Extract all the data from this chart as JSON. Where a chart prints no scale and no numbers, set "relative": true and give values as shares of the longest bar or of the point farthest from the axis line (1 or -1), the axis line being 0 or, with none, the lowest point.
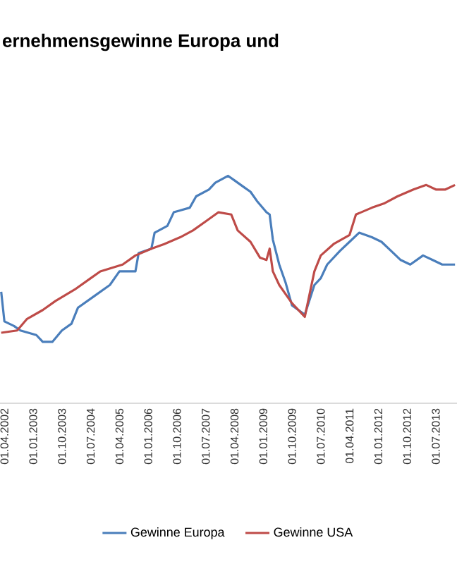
{
  "chart_data": {
    "type": "line",
    "title": "ernehmensgewinne Europa und",
    "relative": true,
    "legend": "bottom",
    "xlim": [
      "2002-02-20",
      "2014-01-20"
    ],
    "xticks": [
      {
        "value": "2002-04-01",
        "label": "01.04.2002"
      },
      {
        "value": "2003-01-01",
        "label": "01.01.2003"
      },
      {
        "value": "2003-10-01",
        "label": "01.10.2003"
      },
      {
        "value": "2004-07-01",
        "label": "01.07.2004"
      },
      {
        "value": "2005-04-01",
        "label": "01.04.2005"
      },
      {
        "value": "2006-01-01",
        "label": "01.01.2006"
      },
      {
        "value": "2006-10-01",
        "label": "01.10.2006"
      },
      {
        "value": "2007-07-01",
        "label": "01.07.2007"
      },
      {
        "value": "2008-04-01",
        "label": "01.04.2008"
      },
      {
        "value": "2009-01-01",
        "label": "01.01.2009"
      },
      {
        "value": "2009-10-01",
        "label": "01.10.2009"
      },
      {
        "value": "2010-07-01",
        "label": "01.07.2010"
      },
      {
        "value": "2011-04-01",
        "label": "01.04.2011"
      },
      {
        "value": "2012-01-01",
        "label": "01.01.2012"
      },
      {
        "value": "2012-10-01",
        "label": "01.10.2012"
      },
      {
        "value": "2013-07-01",
        "label": "01.07.2013"
      }
    ],
    "series": [
      {
        "name": "Gewinne Europa",
        "color": "#4a7ebb",
        "x": [
          "2002-03",
          "2002-04",
          "2002-07",
          "2002-09",
          "2003-02",
          "2003-04",
          "2003-07",
          "2003-10",
          "2004-01",
          "2004-03",
          "2004-08",
          "2005-01",
          "2005-04",
          "2005-09",
          "2005-10",
          "2006-02",
          "2006-03",
          "2006-07",
          "2006-09",
          "2007-02",
          "2007-04",
          "2007-08",
          "2007-10",
          "2008-02",
          "2008-04",
          "2008-07",
          "2008-09",
          "2008-11",
          "2009-02",
          "2009-03",
          "2009-04",
          "2009-06",
          "2009-08",
          "2009-10",
          "2010-02",
          "2010-05",
          "2010-07",
          "2010-09",
          "2011-01",
          "2011-04",
          "2011-07",
          "2011-11",
          "2012-02",
          "2012-05",
          "2012-08",
          "2012-11",
          "2013-03",
          "2013-06",
          "2013-09",
          "2014-01"
        ],
        "values": [
          0.49,
          0.36,
          0.34,
          0.32,
          0.3,
          0.27,
          0.27,
          0.32,
          0.35,
          0.42,
          0.47,
          0.52,
          0.58,
          0.58,
          0.66,
          0.68,
          0.75,
          0.78,
          0.84,
          0.86,
          0.91,
          0.94,
          0.97,
          1.0,
          0.98,
          0.95,
          0.93,
          0.89,
          0.84,
          0.83,
          0.72,
          0.61,
          0.53,
          0.43,
          0.39,
          0.52,
          0.55,
          0.61,
          0.67,
          0.71,
          0.75,
          0.73,
          0.71,
          0.67,
          0.63,
          0.61,
          0.65,
          0.63,
          0.61,
          0.61
        ]
      },
      {
        "name": "Gewinne USA",
        "color": "#be4b48",
        "x": [
          "2002-03",
          "2002-08",
          "2002-11",
          "2003-04",
          "2003-08",
          "2004-02",
          "2004-07",
          "2004-10",
          "2005-05",
          "2005-09",
          "2006-02",
          "2006-06",
          "2006-11",
          "2007-03",
          "2007-07",
          "2007-11",
          "2008-03",
          "2008-05",
          "2008-09",
          "2008-12",
          "2009-02",
          "2009-03",
          "2009-04",
          "2009-06",
          "2009-10",
          "2010-02",
          "2010-05",
          "2010-07",
          "2010-11",
          "2011-04",
          "2011-06",
          "2011-11",
          "2012-03",
          "2012-07",
          "2012-12",
          "2013-04",
          "2013-07",
          "2013-10",
          "2014-01"
        ],
        "values": [
          0.31,
          0.32,
          0.37,
          0.41,
          0.45,
          0.5,
          0.55,
          0.58,
          0.61,
          0.65,
          0.68,
          0.7,
          0.73,
          0.76,
          0.8,
          0.84,
          0.83,
          0.76,
          0.71,
          0.64,
          0.63,
          0.68,
          0.58,
          0.52,
          0.44,
          0.38,
          0.58,
          0.65,
          0.7,
          0.74,
          0.83,
          0.86,
          0.88,
          0.91,
          0.94,
          0.96,
          0.94,
          0.94,
          0.96
        ]
      }
    ]
  }
}
